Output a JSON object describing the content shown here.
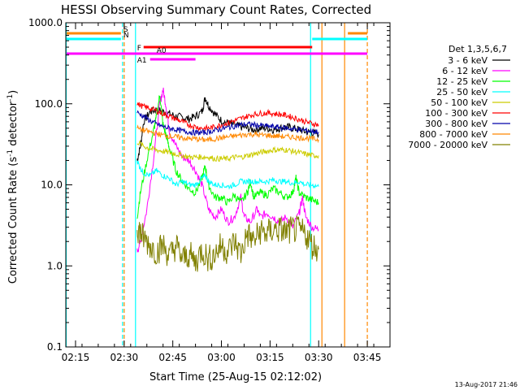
{
  "chart_data": {
    "type": "line",
    "title": "HESSI Observing Summary Count Rates, Corrected",
    "xlabel": "Start Time (25-Aug-15 02:12:02)",
    "ylabel_main": "Corrected Count Rate (s",
    "ylabel_sup": "-1",
    "ylabel_mid": " detector",
    "ylabel_sup2": "-1",
    "ylabel_end": ")",
    "y_scale": "log",
    "ylim": [
      0.1,
      1000
    ],
    "xlim_minutes": [
      0,
      100
    ],
    "x_ticks": [
      {
        "label": "02:15",
        "t": 3
      },
      {
        "label": "02:30",
        "t": 18
      },
      {
        "label": "02:45",
        "t": 33
      },
      {
        "label": "03:00",
        "t": 48
      },
      {
        "label": "03:15",
        "t": 63
      },
      {
        "label": "03:30",
        "t": 78
      },
      {
        "label": "03:45",
        "t": 93
      }
    ],
    "y_ticks": [
      {
        "label": "1000.0",
        "v": 1000
      },
      {
        "label": "100.0",
        "v": 100
      },
      {
        "label": "10.0",
        "v": 10
      },
      {
        "label": "1.0",
        "v": 1
      },
      {
        "label": "0.1",
        "v": 0.1
      }
    ],
    "legend": {
      "title": "Det 1,3,5,6,7",
      "placement": "right"
    },
    "series": [
      {
        "name": "3 - 6 keV",
        "color": "#000000",
        "points": [
          [
            22,
            20
          ],
          [
            23,
            30
          ],
          [
            24,
            60
          ],
          [
            26,
            80
          ],
          [
            28,
            85
          ],
          [
            30,
            80
          ],
          [
            32,
            75
          ],
          [
            34,
            70
          ],
          [
            36,
            68
          ],
          [
            38,
            65
          ],
          [
            40,
            70
          ],
          [
            42,
            80
          ],
          [
            43,
            120
          ],
          [
            44,
            95
          ],
          [
            46,
            75
          ],
          [
            48,
            62
          ],
          [
            50,
            58
          ],
          [
            52,
            55
          ],
          [
            54,
            52
          ],
          [
            56,
            50
          ],
          [
            58,
            48
          ],
          [
            60,
            50
          ],
          [
            62,
            50
          ],
          [
            64,
            48
          ],
          [
            66,
            50
          ],
          [
            68,
            52
          ],
          [
            70,
            50
          ],
          [
            72,
            48
          ],
          [
            74,
            45
          ],
          [
            76,
            44
          ],
          [
            78,
            42
          ]
        ]
      },
      {
        "name": "6 - 12 keV",
        "color": "#ff00ff",
        "points": [
          [
            22,
            1.5
          ],
          [
            23,
            2
          ],
          [
            25,
            5
          ],
          [
            27,
            20
          ],
          [
            29,
            100
          ],
          [
            30,
            150
          ],
          [
            31,
            90
          ],
          [
            32,
            45
          ],
          [
            34,
            30
          ],
          [
            36,
            22
          ],
          [
            38,
            20
          ],
          [
            40,
            15
          ],
          [
            42,
            10
          ],
          [
            44,
            5
          ],
          [
            46,
            4
          ],
          [
            48,
            5
          ],
          [
            50,
            3.5
          ],
          [
            52,
            4
          ],
          [
            54,
            7
          ],
          [
            55,
            4
          ],
          [
            57,
            3.5
          ],
          [
            59,
            5
          ],
          [
            60,
            4
          ],
          [
            62,
            4.5
          ],
          [
            64,
            4
          ],
          [
            66,
            3.5
          ],
          [
            68,
            4
          ],
          [
            70,
            3
          ],
          [
            72,
            4.5
          ],
          [
            73,
            7
          ],
          [
            74,
            4
          ],
          [
            76,
            3
          ],
          [
            78,
            2.8
          ]
        ]
      },
      {
        "name": "12 - 25 keV",
        "color": "#00ff00",
        "points": [
          [
            22,
            4
          ],
          [
            23,
            8
          ],
          [
            25,
            20
          ],
          [
            27,
            45
          ],
          [
            28,
            70
          ],
          [
            29,
            130
          ],
          [
            30,
            55
          ],
          [
            31,
            40
          ],
          [
            32,
            28
          ],
          [
            34,
            15
          ],
          [
            36,
            11
          ],
          [
            38,
            9
          ],
          [
            40,
            8
          ],
          [
            42,
            12
          ],
          [
            43,
            17
          ],
          [
            44,
            10
          ],
          [
            46,
            7
          ],
          [
            48,
            7
          ],
          [
            50,
            6
          ],
          [
            52,
            7.5
          ],
          [
            54,
            6
          ],
          [
            56,
            8
          ],
          [
            57,
            11
          ],
          [
            58,
            7
          ],
          [
            60,
            8
          ],
          [
            62,
            7.5
          ],
          [
            64,
            9
          ],
          [
            66,
            8
          ],
          [
            68,
            7
          ],
          [
            70,
            8
          ],
          [
            71,
            12
          ],
          [
            72,
            8
          ],
          [
            74,
            7
          ],
          [
            76,
            6.5
          ],
          [
            78,
            6
          ]
        ]
      },
      {
        "name": "25 - 50 keV",
        "color": "#00ffff",
        "points": [
          [
            22,
            20
          ],
          [
            23,
            16
          ],
          [
            24,
            14
          ],
          [
            26,
            13
          ],
          [
            28,
            15
          ],
          [
            30,
            13
          ],
          [
            32,
            12
          ],
          [
            34,
            10
          ],
          [
            36,
            11
          ],
          [
            38,
            10
          ],
          [
            40,
            10
          ],
          [
            42,
            12
          ],
          [
            43,
            13
          ],
          [
            44,
            11
          ],
          [
            46,
            10
          ],
          [
            48,
            10
          ],
          [
            50,
            9.5
          ],
          [
            52,
            10
          ],
          [
            54,
            11
          ],
          [
            56,
            11
          ],
          [
            58,
            11
          ],
          [
            60,
            11
          ],
          [
            62,
            11
          ],
          [
            64,
            11.5
          ],
          [
            66,
            11
          ],
          [
            68,
            11
          ],
          [
            70,
            10.5
          ],
          [
            72,
            11
          ],
          [
            74,
            10
          ],
          [
            76,
            10
          ],
          [
            78,
            9.5
          ]
        ]
      },
      {
        "name": "50 - 100 keV",
        "color": "#cccc00",
        "points": [
          [
            22,
            34
          ],
          [
            24,
            30
          ],
          [
            26,
            28
          ],
          [
            28,
            27
          ],
          [
            30,
            26
          ],
          [
            32,
            25
          ],
          [
            34,
            24
          ],
          [
            36,
            23
          ],
          [
            38,
            22
          ],
          [
            40,
            22
          ],
          [
            42,
            22
          ],
          [
            44,
            22
          ],
          [
            46,
            21
          ],
          [
            48,
            21
          ],
          [
            50,
            21
          ],
          [
            52,
            22
          ],
          [
            54,
            22
          ],
          [
            56,
            23
          ],
          [
            58,
            24
          ],
          [
            60,
            25
          ],
          [
            62,
            26
          ],
          [
            64,
            27
          ],
          [
            66,
            27
          ],
          [
            68,
            27
          ],
          [
            70,
            26
          ],
          [
            72,
            25
          ],
          [
            74,
            24
          ],
          [
            76,
            23
          ],
          [
            78,
            23
          ]
        ]
      },
      {
        "name": "100 - 300 keV",
        "color": "#ff0000",
        "points": [
          [
            22,
            100
          ],
          [
            24,
            92
          ],
          [
            26,
            88
          ],
          [
            28,
            82
          ],
          [
            30,
            75
          ],
          [
            32,
            70
          ],
          [
            34,
            65
          ],
          [
            36,
            60
          ],
          [
            38,
            55
          ],
          [
            40,
            52
          ],
          [
            42,
            50
          ],
          [
            44,
            50
          ],
          [
            46,
            52
          ],
          [
            48,
            55
          ],
          [
            50,
            58
          ],
          [
            52,
            62
          ],
          [
            54,
            66
          ],
          [
            56,
            70
          ],
          [
            58,
            74
          ],
          [
            60,
            76
          ],
          [
            62,
            77
          ],
          [
            64,
            76
          ],
          [
            66,
            74
          ],
          [
            68,
            72
          ],
          [
            70,
            68
          ],
          [
            72,
            64
          ],
          [
            74,
            60
          ],
          [
            76,
            57
          ],
          [
            78,
            55
          ]
        ]
      },
      {
        "name": "300 - 800 keV",
        "color": "#0000aa",
        "points": [
          [
            22,
            78
          ],
          [
            24,
            70
          ],
          [
            26,
            62
          ],
          [
            28,
            56
          ],
          [
            30,
            52
          ],
          [
            32,
            50
          ],
          [
            34,
            48
          ],
          [
            36,
            46
          ],
          [
            38,
            45
          ],
          [
            40,
            44
          ],
          [
            42,
            44
          ],
          [
            44,
            45
          ],
          [
            46,
            47
          ],
          [
            48,
            49
          ],
          [
            50,
            51
          ],
          [
            52,
            53
          ],
          [
            54,
            55
          ],
          [
            56,
            56
          ],
          [
            58,
            55
          ],
          [
            60,
            54
          ],
          [
            62,
            53
          ],
          [
            64,
            52
          ],
          [
            66,
            51
          ],
          [
            68,
            50
          ],
          [
            70,
            49
          ],
          [
            72,
            48
          ],
          [
            74,
            47
          ],
          [
            76,
            46
          ],
          [
            78,
            45
          ]
        ]
      },
      {
        "name": "800 - 7000 keV",
        "color": "#ff8800",
        "points": [
          [
            22,
            50
          ],
          [
            24,
            47
          ],
          [
            26,
            45
          ],
          [
            28,
            43
          ],
          [
            30,
            41
          ],
          [
            32,
            40
          ],
          [
            34,
            39
          ],
          [
            36,
            38
          ],
          [
            38,
            37
          ],
          [
            40,
            37
          ],
          [
            42,
            36
          ],
          [
            44,
            36
          ],
          [
            46,
            37
          ],
          [
            48,
            38
          ],
          [
            50,
            39
          ],
          [
            52,
            40
          ],
          [
            54,
            41
          ],
          [
            56,
            42
          ],
          [
            58,
            42
          ],
          [
            60,
            41
          ],
          [
            62,
            41
          ],
          [
            64,
            40
          ],
          [
            66,
            40
          ],
          [
            68,
            39
          ],
          [
            70,
            39
          ],
          [
            72,
            38
          ],
          [
            74,
            38
          ],
          [
            76,
            37
          ],
          [
            78,
            36
          ]
        ]
      },
      {
        "name": "7000 - 20000 keV",
        "color": "#808000",
        "points": [
          [
            22,
            3
          ],
          [
            23,
            2.6
          ],
          [
            24,
            2.2
          ],
          [
            26,
            1.8
          ],
          [
            28,
            1.5
          ],
          [
            30,
            1.8
          ],
          [
            32,
            1.3
          ],
          [
            34,
            1.8
          ],
          [
            36,
            1.2
          ],
          [
            38,
            1.4
          ],
          [
            40,
            1.1
          ],
          [
            42,
            1.6
          ],
          [
            44,
            1.2
          ],
          [
            46,
            1.4
          ],
          [
            48,
            1.8
          ],
          [
            50,
            1.5
          ],
          [
            52,
            2
          ],
          [
            54,
            1.4
          ],
          [
            56,
            2.5
          ],
          [
            58,
            2
          ],
          [
            60,
            2.7
          ],
          [
            62,
            2.5
          ],
          [
            64,
            2.8
          ],
          [
            66,
            2.8
          ],
          [
            68,
            2.6
          ],
          [
            70,
            2.8
          ],
          [
            72,
            2.7
          ],
          [
            74,
            2.5
          ],
          [
            76,
            1.8
          ],
          [
            78,
            1.6
          ]
        ]
      }
    ],
    "vertical_lines": [
      {
        "t": -0.5,
        "color": "#00ffff",
        "dash": false
      },
      {
        "t": 18,
        "color": "#ff8800",
        "dash": true
      },
      {
        "t": 17.5,
        "color": "#00ffff",
        "dash": true
      },
      {
        "t": 21.5,
        "color": "#00ffff",
        "dash": false
      },
      {
        "t": 75.5,
        "color": "#00ffff",
        "dash": false
      },
      {
        "t": 86,
        "color": "#ff8800",
        "dash": false
      },
      {
        "t": 93,
        "color": "#ff8800",
        "dash": true
      },
      {
        "t": 79,
        "color": "#ff8800",
        "dash": false
      }
    ],
    "state_bars": [
      {
        "label": "S",
        "color": "#ff8800",
        "y": 41,
        "segments": [
          [
            -1,
            17
          ],
          [
            87,
            93
          ]
        ]
      },
      {
        "label": "N",
        "color": "#00ffff",
        "y": 48,
        "segments": [
          [
            -1,
            17
          ],
          [
            76,
            93
          ]
        ]
      },
      {
        "label": "F",
        "color": "#ff0000",
        "y": 58,
        "segments": [
          [
            24,
            76
          ]
        ]
      },
      {
        "label": "A0",
        "color": "#ff00ff",
        "y": 66,
        "segments": [
          [
            -1,
            93
          ]
        ]
      },
      {
        "label": "A1",
        "color": "#ff00ff",
        "y": 73,
        "segments": [
          [
            26,
            40
          ]
        ]
      }
    ],
    "footer_timestamp": "13-Aug-2017 21:46"
  }
}
